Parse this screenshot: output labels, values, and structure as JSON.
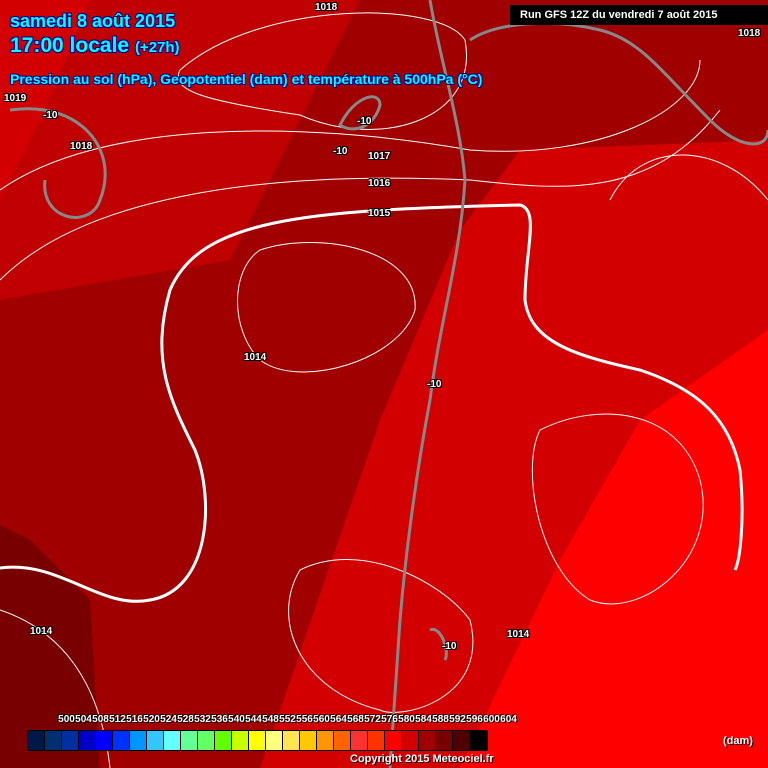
{
  "header": {
    "date": "samedi 8 août 2015",
    "time": "17:00 locale",
    "offset": "(+27h)",
    "subtitle": "Pression au sol (hPa), Geopotentiel (dam) et température à 500hPa (°C)",
    "run": "Run GFS 12Z du vendredi 7 août 2015"
  },
  "map_labels": [
    {
      "text": "1018",
      "kind": "isobar"
    },
    {
      "text": "1018",
      "kind": "isobar"
    },
    {
      "text": "1018",
      "kind": "isobar"
    },
    {
      "text": "1019",
      "kind": "isobar"
    },
    {
      "text": "1017",
      "kind": "isobar"
    },
    {
      "text": "1016",
      "kind": "isobar"
    },
    {
      "text": "1015",
      "kind": "isobar"
    },
    {
      "text": "1014",
      "kind": "isobar"
    },
    {
      "text": "1014",
      "kind": "isobar"
    },
    {
      "text": "1014",
      "kind": "isobar"
    },
    {
      "text": "-10",
      "kind": "isotherm"
    },
    {
      "text": "-10",
      "kind": "isotherm"
    },
    {
      "text": "-10",
      "kind": "isotherm"
    },
    {
      "text": "-10",
      "kind": "isotherm"
    },
    {
      "text": "-10",
      "kind": "isotherm"
    }
  ],
  "legend": {
    "ticks": [
      "500",
      "504",
      "508",
      "512",
      "516",
      "520",
      "524",
      "528",
      "532",
      "536",
      "540",
      "544",
      "548",
      "552",
      "556",
      "560",
      "564",
      "568",
      "572",
      "576",
      "580",
      "584",
      "588",
      "592",
      "596",
      "600",
      "604"
    ],
    "colors": [
      "#001848",
      "#003070",
      "#0030a0",
      "#0000c8",
      "#0000ff",
      "#0032ff",
      "#0096ff",
      "#32c8ff",
      "#64ffff",
      "#64ff96",
      "#64ff64",
      "#64ff00",
      "#c8ff00",
      "#ffff00",
      "#ffff80",
      "#ffe650",
      "#ffc800",
      "#ff9600",
      "#ff6400",
      "#ff3232",
      "#ff3200",
      "#ff0000",
      "#d20000",
      "#a00000",
      "#780000",
      "#500000",
      "#000000"
    ],
    "unit": "(dam)"
  },
  "copyright": "Copyright 2015 Meteociel.fr"
}
